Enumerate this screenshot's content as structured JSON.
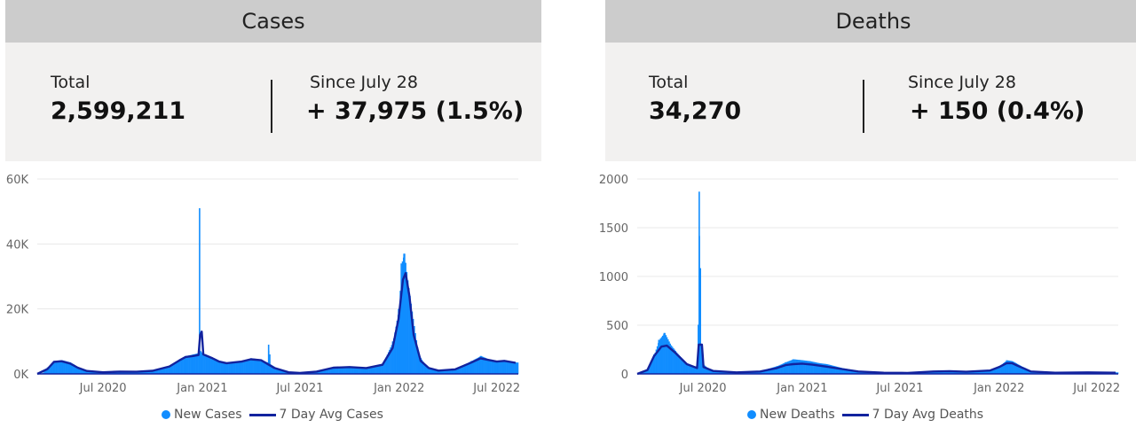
{
  "panels": [
    {
      "title": "Cases",
      "total_label": "Total",
      "total_value": "2,599,211",
      "since_label": "Since July 28",
      "since_value": "+ 37,975 (1.5%)",
      "legend": {
        "bars": "New Cases",
        "line": "7 Day Avg Cases"
      }
    },
    {
      "title": "Deaths",
      "total_label": "Total",
      "total_value": "34,270",
      "since_label": "Since July 28",
      "since_value": "+ 150 (0.4%)",
      "legend": {
        "bars": "New Deaths",
        "line": "7 Day Avg Deaths"
      }
    }
  ],
  "colors": {
    "bars": "#118dff",
    "line": "#12239e",
    "grid": "#e8e8e8"
  },
  "chart_data": [
    {
      "type": "area",
      "x_domain": [
        "2020-03-01",
        "2022-08-10"
      ],
      "x_ticks": [
        {
          "date": "2020-07-01",
          "label": "Jul 2020"
        },
        {
          "date": "2021-01-01",
          "label": "Jan 2021"
        },
        {
          "date": "2021-07-01",
          "label": "Jul 2021"
        },
        {
          "date": "2022-01-01",
          "label": "Jan 2022"
        },
        {
          "date": "2022-07-01",
          "label": "Jul 2022"
        }
      ],
      "y_ticks": [
        {
          "value": 0,
          "label": "0K"
        },
        {
          "value": 20000,
          "label": "20K"
        },
        {
          "value": 40000,
          "label": "40K"
        },
        {
          "value": 60000,
          "label": "60K"
        }
      ],
      "ylim": [
        0,
        60000
      ],
      "grid": true,
      "legend_position": "bottom",
      "series": [
        {
          "name": "New Cases",
          "style": "bars",
          "points": [
            [
              "2020-03-01",
              0
            ],
            [
              "2020-03-10",
              200
            ],
            [
              "2020-03-20",
              2000
            ],
            [
              "2020-04-01",
              4000
            ],
            [
              "2020-04-15",
              4200
            ],
            [
              "2020-05-01",
              3500
            ],
            [
              "2020-05-15",
              2000
            ],
            [
              "2020-06-01",
              1000
            ],
            [
              "2020-07-01",
              500
            ],
            [
              "2020-08-01",
              800
            ],
            [
              "2020-09-01",
              700
            ],
            [
              "2020-10-01",
              1000
            ],
            [
              "2020-11-01",
              2500
            ],
            [
              "2020-11-20",
              4500
            ],
            [
              "2020-12-01",
              5500
            ],
            [
              "2020-12-15",
              6000
            ],
            [
              "2020-12-26",
              6500
            ],
            [
              "2020-12-27",
              51000
            ],
            [
              "2020-12-28",
              7000
            ],
            [
              "2021-01-05",
              5500
            ],
            [
              "2021-01-20",
              5000
            ],
            [
              "2021-02-01",
              4000
            ],
            [
              "2021-02-15",
              3500
            ],
            [
              "2021-03-15",
              4000
            ],
            [
              "2021-04-01",
              4800
            ],
            [
              "2021-04-15",
              4500
            ],
            [
              "2021-05-01",
              3500
            ],
            [
              "2021-05-04",
              9000
            ],
            [
              "2021-05-06",
              3000
            ],
            [
              "2021-05-20",
              1500
            ],
            [
              "2021-06-10",
              500
            ],
            [
              "2021-07-01",
              300
            ],
            [
              "2021-08-01",
              800
            ],
            [
              "2021-09-01",
              2000
            ],
            [
              "2021-10-01",
              2200
            ],
            [
              "2021-11-01",
              1800
            ],
            [
              "2021-12-01",
              3000
            ],
            [
              "2021-12-20",
              10000
            ],
            [
              "2021-12-31",
              20000
            ],
            [
              "2022-01-05",
              34000
            ],
            [
              "2022-01-10",
              37000
            ],
            [
              "2022-01-15",
              30000
            ],
            [
              "2022-01-25",
              18000
            ],
            [
              "2022-02-05",
              6000
            ],
            [
              "2022-02-20",
              2000
            ],
            [
              "2022-03-15",
              1000
            ],
            [
              "2022-04-15",
              1500
            ],
            [
              "2022-05-15",
              4000
            ],
            [
              "2022-06-01",
              5500
            ],
            [
              "2022-06-15",
              4500
            ],
            [
              "2022-07-01",
              4000
            ],
            [
              "2022-07-15",
              4200
            ],
            [
              "2022-08-05",
              3500
            ]
          ]
        },
        {
          "name": "7 Day Avg Cases",
          "style": "line",
          "points": [
            [
              "2020-03-01",
              0
            ],
            [
              "2020-03-20",
              1500
            ],
            [
              "2020-04-01",
              3700
            ],
            [
              "2020-04-15",
              3900
            ],
            [
              "2020-05-01",
              3200
            ],
            [
              "2020-05-15",
              1900
            ],
            [
              "2020-06-01",
              900
            ],
            [
              "2020-07-01",
              500
            ],
            [
              "2020-08-01",
              700
            ],
            [
              "2020-09-01",
              650
            ],
            [
              "2020-10-01",
              950
            ],
            [
              "2020-11-01",
              2300
            ],
            [
              "2020-11-20",
              4200
            ],
            [
              "2020-12-01",
              5200
            ],
            [
              "2020-12-15",
              5500
            ],
            [
              "2020-12-25",
              5800
            ],
            [
              "2020-12-28",
              12000
            ],
            [
              "2020-12-31",
              13000
            ],
            [
              "2021-01-03",
              6000
            ],
            [
              "2021-01-20",
              4800
            ],
            [
              "2021-02-01",
              3800
            ],
            [
              "2021-02-15",
              3300
            ],
            [
              "2021-03-15",
              3800
            ],
            [
              "2021-04-01",
              4500
            ],
            [
              "2021-04-20",
              4200
            ],
            [
              "2021-05-15",
              1800
            ],
            [
              "2021-06-10",
              500
            ],
            [
              "2021-07-01",
              300
            ],
            [
              "2021-08-01",
              700
            ],
            [
              "2021-09-01",
              1900
            ],
            [
              "2021-10-01",
              2100
            ],
            [
              "2021-11-01",
              1800
            ],
            [
              "2021-12-01",
              2800
            ],
            [
              "2021-12-20",
              8000
            ],
            [
              "2021-12-31",
              17000
            ],
            [
              "2022-01-08",
              29000
            ],
            [
              "2022-01-13",
              31000
            ],
            [
              "2022-01-20",
              24000
            ],
            [
              "2022-01-28",
              12000
            ],
            [
              "2022-02-10",
              4000
            ],
            [
              "2022-02-25",
              1800
            ],
            [
              "2022-03-15",
              1000
            ],
            [
              "2022-04-15",
              1400
            ],
            [
              "2022-05-15",
              3500
            ],
            [
              "2022-06-01",
              4800
            ],
            [
              "2022-06-15",
              4300
            ],
            [
              "2022-07-01",
              3800
            ],
            [
              "2022-07-15",
              4000
            ],
            [
              "2022-08-05",
              3400
            ]
          ]
        }
      ]
    },
    {
      "type": "area",
      "x_domain": [
        "2020-03-01",
        "2022-08-10"
      ],
      "x_ticks": [
        {
          "date": "2020-07-01",
          "label": "Jul 2020"
        },
        {
          "date": "2021-01-01",
          "label": "Jan 2021"
        },
        {
          "date": "2021-07-01",
          "label": "Jul 2021"
        },
        {
          "date": "2022-01-01",
          "label": "Jan 2022"
        },
        {
          "date": "2022-07-01",
          "label": "Jul 2022"
        }
      ],
      "y_ticks": [
        {
          "value": 0,
          "label": "0"
        },
        {
          "value": 500,
          "label": "500"
        },
        {
          "value": 1000,
          "label": "1000"
        },
        {
          "value": 1500,
          "label": "1500"
        },
        {
          "value": 2000,
          "label": "2000"
        }
      ],
      "ylim": [
        0,
        2000
      ],
      "grid": true,
      "legend_position": "bottom",
      "series": [
        {
          "name": "New Deaths",
          "style": "bars",
          "points": [
            [
              "2020-03-01",
              0
            ],
            [
              "2020-03-20",
              50
            ],
            [
              "2020-04-01",
              200
            ],
            [
              "2020-04-10",
              350
            ],
            [
              "2020-04-20",
              420
            ],
            [
              "2020-05-01",
              300
            ],
            [
              "2020-05-15",
              200
            ],
            [
              "2020-06-01",
              100
            ],
            [
              "2020-06-20",
              50
            ],
            [
              "2020-06-24",
              1870
            ],
            [
              "2020-06-26",
              300
            ],
            [
              "2020-06-30",
              100
            ],
            [
              "2020-07-15",
              30
            ],
            [
              "2020-09-01",
              15
            ],
            [
              "2020-10-15",
              30
            ],
            [
              "2020-11-15",
              80
            ],
            [
              "2020-12-01",
              120
            ],
            [
              "2020-12-15",
              150
            ],
            [
              "2021-01-01",
              140
            ],
            [
              "2021-01-15",
              130
            ],
            [
              "2021-02-01",
              110
            ],
            [
              "2021-02-15",
              100
            ],
            [
              "2021-03-15",
              60
            ],
            [
              "2021-04-15",
              30
            ],
            [
              "2021-06-01",
              15
            ],
            [
              "2021-07-15",
              10
            ],
            [
              "2021-09-01",
              30
            ],
            [
              "2021-10-01",
              30
            ],
            [
              "2021-11-01",
              25
            ],
            [
              "2021-12-15",
              40
            ],
            [
              "2022-01-01",
              80
            ],
            [
              "2022-01-15",
              140
            ],
            [
              "2022-01-25",
              130
            ],
            [
              "2022-02-10",
              80
            ],
            [
              "2022-03-01",
              30
            ],
            [
              "2022-04-15",
              15
            ],
            [
              "2022-06-15",
              20
            ],
            [
              "2022-08-05",
              15
            ]
          ]
        },
        {
          "name": "7 Day Avg Deaths",
          "style": "line",
          "points": [
            [
              "2020-03-01",
              0
            ],
            [
              "2020-03-20",
              40
            ],
            [
              "2020-04-01",
              180
            ],
            [
              "2020-04-15",
              280
            ],
            [
              "2020-04-25",
              290
            ],
            [
              "2020-05-10",
              220
            ],
            [
              "2020-06-01",
              100
            ],
            [
              "2020-06-20",
              60
            ],
            [
              "2020-06-23",
              300
            ],
            [
              "2020-06-29",
              300
            ],
            [
              "2020-07-02",
              70
            ],
            [
              "2020-07-20",
              30
            ],
            [
              "2020-09-01",
              15
            ],
            [
              "2020-10-15",
              25
            ],
            [
              "2020-11-15",
              60
            ],
            [
              "2020-12-01",
              90
            ],
            [
              "2020-12-15",
              100
            ],
            [
              "2021-01-01",
              105
            ],
            [
              "2021-01-20",
              95
            ],
            [
              "2021-02-15",
              75
            ],
            [
              "2021-03-15",
              50
            ],
            [
              "2021-04-15",
              25
            ],
            [
              "2021-06-01",
              12
            ],
            [
              "2021-07-15",
              10
            ],
            [
              "2021-09-01",
              25
            ],
            [
              "2021-10-01",
              28
            ],
            [
              "2021-11-01",
              22
            ],
            [
              "2021-12-15",
              35
            ],
            [
              "2022-01-01",
              70
            ],
            [
              "2022-01-15",
              110
            ],
            [
              "2022-01-25",
              110
            ],
            [
              "2022-02-10",
              70
            ],
            [
              "2022-03-01",
              25
            ],
            [
              "2022-04-15",
              12
            ],
            [
              "2022-06-15",
              15
            ],
            [
              "2022-08-05",
              12
            ]
          ]
        }
      ]
    }
  ]
}
